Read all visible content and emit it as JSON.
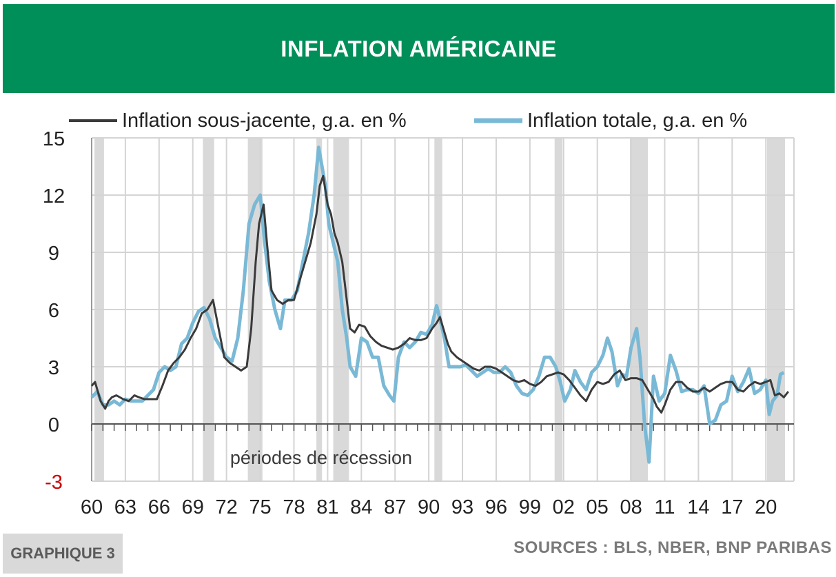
{
  "header": {
    "title": "INFLATION AMÉRICAINE"
  },
  "footer": {
    "tag": "GRAPHIQUE 3",
    "sources": "SOURCES : BLS, NBER, BNP PARIBAS"
  },
  "colors": {
    "header_bg": "#008f58",
    "core": "#3a3a3a",
    "total": "#7ab9d6",
    "recession": "#d9d9d9",
    "negative_tick": "#cc0000"
  },
  "chart_data": {
    "type": "line",
    "title": "INFLATION AMÉRICAINE",
    "xlabel": "",
    "ylabel": "",
    "xlim": [
      1960,
      2022.5
    ],
    "ylim": [
      -3,
      15
    ],
    "yticks": [
      15,
      12,
      9,
      6,
      3,
      0,
      -3
    ],
    "xtick_labels": [
      "60",
      "63",
      "66",
      "69",
      "72",
      "75",
      "78",
      "81",
      "84",
      "87",
      "90",
      "93",
      "96",
      "99",
      "02",
      "05",
      "08",
      "11",
      "14",
      "17",
      "20"
    ],
    "grid": true,
    "legend_position": "top",
    "annotation": "périodes de récession",
    "recessions": [
      [
        1960.25,
        1961.1
      ],
      [
        1969.9,
        1970.9
      ],
      [
        1973.9,
        1975.2
      ],
      [
        1980.0,
        1980.5
      ],
      [
        1981.5,
        1982.9
      ],
      [
        1990.5,
        1991.2
      ],
      [
        2001.2,
        2001.9
      ],
      [
        2007.9,
        2009.5
      ],
      [
        2020.1,
        2021.7
      ]
    ],
    "series": [
      {
        "name": "Inflation sous-jacente, g.a. en %",
        "x": [
          1960,
          1960.3,
          1960.8,
          1961.2,
          1961.5,
          1961.8,
          1962.2,
          1962.8,
          1963.3,
          1963.8,
          1964.2,
          1964.7,
          1965.2,
          1965.8,
          1966.3,
          1966.8,
          1967.3,
          1967.8,
          1968.3,
          1968.8,
          1969.3,
          1969.8,
          1970.3,
          1970.8,
          1971.3,
          1971.8,
          1972.3,
          1972.8,
          1973.3,
          1973.8,
          1974.2,
          1974.6,
          1974.9,
          1975.3,
          1975.6,
          1976.0,
          1976.5,
          1977.0,
          1977.5,
          1978.0,
          1978.5,
          1979.0,
          1979.5,
          1980.0,
          1980.3,
          1980.6,
          1981.0,
          1981.3,
          1981.6,
          1981.9,
          1982.3,
          1982.6,
          1983.0,
          1983.4,
          1983.8,
          1984.3,
          1984.8,
          1985.3,
          1985.8,
          1986.3,
          1986.8,
          1987.3,
          1987.8,
          1988.3,
          1988.8,
          1989.3,
          1989.8,
          1990.3,
          1990.7,
          1991.0,
          1991.3,
          1991.7,
          1992.0,
          1992.5,
          1993.0,
          1993.5,
          1994.0,
          1994.5,
          1995.0,
          1995.5,
          1996.0,
          1996.5,
          1997.0,
          1997.5,
          1998.0,
          1998.5,
          1999.0,
          1999.5,
          2000.0,
          2000.5,
          2001.0,
          2001.5,
          2002.0,
          2002.5,
          2003.0,
          2003.5,
          2004.0,
          2004.5,
          2005.0,
          2005.5,
          2006.0,
          2006.5,
          2007.0,
          2007.5,
          2008.0,
          2008.5,
          2009.0,
          2009.5,
          2010.0,
          2010.3,
          2010.7,
          2011.0,
          2011.5,
          2012.0,
          2012.5,
          2013.0,
          2013.5,
          2014.0,
          2014.5,
          2015.0,
          2015.5,
          2016.0,
          2016.5,
          2017.0,
          2017.5,
          2018.0,
          2018.5,
          2019.0,
          2019.5,
          2020.0,
          2020.4,
          2020.8,
          2021.2,
          2021.6,
          2022.0
        ],
        "values": [
          2.0,
          2.2,
          1.2,
          0.8,
          1.2,
          1.4,
          1.5,
          1.3,
          1.2,
          1.5,
          1.4,
          1.3,
          1.3,
          1.3,
          2.0,
          2.8,
          3.2,
          3.5,
          3.9,
          4.5,
          5.0,
          5.8,
          6.0,
          6.5,
          5.0,
          3.5,
          3.2,
          3.0,
          2.8,
          3.0,
          5.0,
          8.5,
          10.5,
          11.5,
          9.5,
          7.0,
          6.5,
          6.3,
          6.5,
          6.5,
          7.5,
          8.5,
          9.5,
          11.0,
          12.5,
          13.0,
          11.5,
          11.0,
          10.0,
          9.5,
          8.5,
          7.0,
          5.0,
          4.8,
          5.2,
          5.1,
          4.6,
          4.3,
          4.1,
          4.0,
          3.9,
          4.0,
          4.2,
          4.5,
          4.4,
          4.4,
          4.5,
          5.0,
          5.3,
          5.6,
          5.0,
          4.2,
          3.8,
          3.5,
          3.3,
          3.1,
          2.9,
          2.8,
          3.0,
          3.0,
          2.9,
          2.7,
          2.5,
          2.3,
          2.2,
          2.3,
          2.1,
          2.0,
          2.2,
          2.5,
          2.6,
          2.7,
          2.6,
          2.3,
          1.9,
          1.5,
          1.2,
          1.8,
          2.2,
          2.1,
          2.2,
          2.6,
          2.8,
          2.3,
          2.4,
          2.4,
          2.3,
          1.8,
          1.3,
          0.9,
          0.6,
          1.0,
          1.8,
          2.2,
          2.2,
          1.9,
          1.7,
          1.7,
          1.9,
          1.7,
          1.9,
          2.1,
          2.2,
          2.2,
          1.8,
          1.7,
          2.0,
          2.2,
          2.1,
          2.2,
          2.3,
          1.5,
          1.6,
          1.4,
          1.7
        ]
      },
      {
        "name": "Inflation totale, g.a. en %",
        "x": [
          1960,
          1960.5,
          1961,
          1961.5,
          1962,
          1962.5,
          1963,
          1963.5,
          1964,
          1964.5,
          1965,
          1965.5,
          1966,
          1966.5,
          1967,
          1967.5,
          1968,
          1968.5,
          1969,
          1969.5,
          1970,
          1970.5,
          1971,
          1971.5,
          1972,
          1972.5,
          1973,
          1973.5,
          1974,
          1974.5,
          1975,
          1975.4,
          1975.8,
          1976.3,
          1976.8,
          1977.2,
          1977.8,
          1978.3,
          1978.8,
          1979.3,
          1979.8,
          1980.2,
          1980.5,
          1980.8,
          1981.1,
          1981.5,
          1981.9,
          1982.3,
          1982.7,
          1983.0,
          1983.5,
          1984.0,
          1984.5,
          1985.0,
          1985.5,
          1986.0,
          1986.5,
          1986.9,
          1987.3,
          1987.8,
          1988.3,
          1988.8,
          1989.3,
          1989.8,
          1990.3,
          1990.7,
          1991.0,
          1991.4,
          1991.8,
          1992.3,
          1992.8,
          1993.3,
          1993.8,
          1994.3,
          1994.8,
          1995.3,
          1995.8,
          1996.3,
          1996.8,
          1997.3,
          1997.8,
          1998.3,
          1998.8,
          1999.3,
          1999.8,
          2000.3,
          2000.8,
          2001.3,
          2001.7,
          2002.1,
          2002.6,
          2003.0,
          2003.5,
          2004.0,
          2004.5,
          2005.0,
          2005.5,
          2005.9,
          2006.3,
          2006.8,
          2007.2,
          2007.6,
          2008.0,
          2008.5,
          2008.8,
          2009.2,
          2009.6,
          2010.0,
          2010.5,
          2011.0,
          2011.5,
          2012.0,
          2012.5,
          2013.0,
          2013.5,
          2014.0,
          2014.5,
          2015.0,
          2015.5,
          2016.0,
          2016.5,
          2017.0,
          2017.5,
          2018.0,
          2018.5,
          2019.0,
          2019.5,
          2020.0,
          2020.3,
          2020.6,
          2021.0,
          2021.3,
          2021.6
        ],
        "values": [
          1.4,
          1.7,
          1.0,
          1.0,
          1.2,
          1.0,
          1.3,
          1.2,
          1.2,
          1.2,
          1.5,
          1.8,
          2.7,
          3.0,
          2.8,
          3.0,
          4.2,
          4.5,
          5.3,
          5.9,
          6.1,
          5.5,
          4.5,
          4.0,
          3.5,
          3.3,
          4.5,
          7.0,
          10.5,
          11.5,
          12.0,
          9.5,
          7.5,
          6.0,
          5.0,
          6.5,
          6.5,
          7.0,
          8.5,
          10.0,
          12.0,
          14.5,
          13.5,
          12.5,
          10.5,
          9.5,
          8.5,
          6.0,
          4.5,
          3.0,
          2.5,
          4.5,
          4.3,
          3.5,
          3.5,
          2.0,
          1.5,
          1.2,
          3.5,
          4.3,
          4.0,
          4.3,
          4.8,
          4.7,
          5.2,
          6.2,
          5.5,
          4.5,
          3.0,
          3.0,
          3.0,
          3.1,
          2.8,
          2.5,
          2.7,
          2.9,
          2.7,
          2.7,
          3.0,
          2.7,
          2.0,
          1.6,
          1.5,
          1.8,
          2.5,
          3.5,
          3.5,
          3.0,
          2.2,
          1.2,
          1.8,
          2.8,
          2.2,
          1.8,
          2.7,
          3.0,
          3.6,
          4.5,
          3.8,
          2.0,
          2.6,
          2.5,
          4.0,
          5.0,
          3.5,
          0.0,
          -2.0,
          2.5,
          1.2,
          1.6,
          3.6,
          2.8,
          1.7,
          1.8,
          1.8,
          1.6,
          2.0,
          0.0,
          0.2,
          1.0,
          1.2,
          2.5,
          1.7,
          2.2,
          2.9,
          1.6,
          1.8,
          2.3,
          0.5,
          1.2,
          1.5,
          2.6,
          2.7
        ]
      }
    ]
  }
}
